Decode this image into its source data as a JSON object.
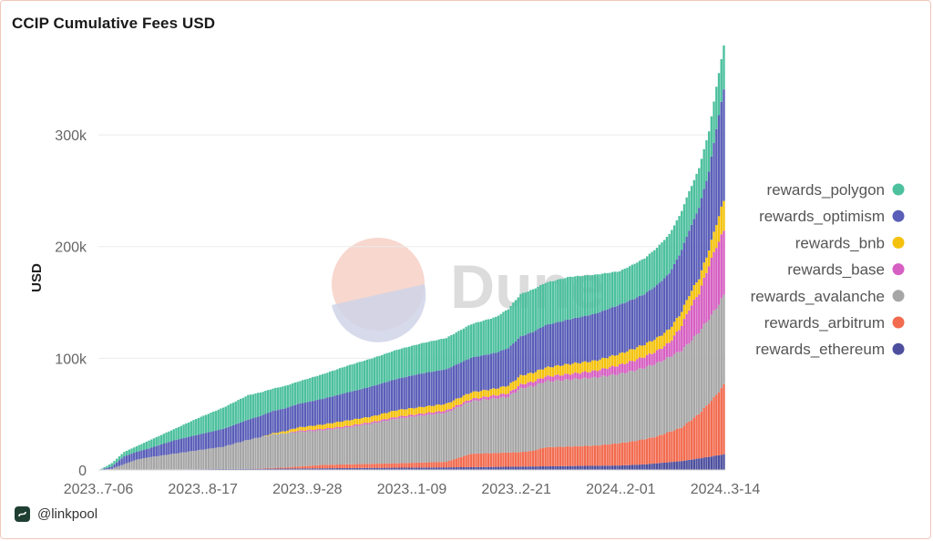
{
  "chart_data": {
    "type": "area",
    "title": "CCIP Cumulative Fees USD",
    "ylabel": "USD",
    "xlabel": "",
    "ylim": [
      0,
      380000
    ],
    "yticks": [
      0,
      100000,
      200000,
      300000
    ],
    "ytick_labels": [
      "0",
      "100k",
      "200k",
      "300k"
    ],
    "xtick_labels": [
      "2023..7-06",
      "2023..8-17",
      "2023..9-28",
      "2023..1-09",
      "2023..2-21",
      "2024..2-01",
      "2024..3-14"
    ],
    "x_positions": [
      0,
      42,
      84,
      126,
      168,
      210,
      252
    ],
    "x_range": [
      0,
      252
    ],
    "legend_position": "right",
    "grid": true,
    "watermark": "Dune",
    "series": [
      {
        "name": "rewards_ethereum",
        "color": "#4d4f9e",
        "points": [
          [
            0,
            0
          ],
          [
            30,
            500
          ],
          [
            60,
            1000
          ],
          [
            90,
            1500
          ],
          [
            120,
            2000
          ],
          [
            150,
            2500
          ],
          [
            170,
            3000
          ],
          [
            190,
            3500
          ],
          [
            210,
            4000
          ],
          [
            220,
            5000
          ],
          [
            235,
            8000
          ],
          [
            244,
            11000
          ],
          [
            252,
            14000
          ]
        ]
      },
      {
        "name": "rewards_arbitrum",
        "color": "#f26b4f",
        "points": [
          [
            0,
            0
          ],
          [
            60,
            0
          ],
          [
            75,
            1000
          ],
          [
            90,
            3000
          ],
          [
            120,
            4000
          ],
          [
            140,
            5000
          ],
          [
            150,
            12000
          ],
          [
            170,
            13000
          ],
          [
            175,
            14000
          ],
          [
            180,
            17000
          ],
          [
            200,
            18000
          ],
          [
            215,
            21000
          ],
          [
            225,
            24000
          ],
          [
            235,
            30000
          ],
          [
            242,
            40000
          ],
          [
            248,
            52000
          ],
          [
            252,
            62000
          ]
        ]
      },
      {
        "name": "rewards_avalanche",
        "color": "#a6a6a6",
        "points": [
          [
            0,
            0
          ],
          [
            5,
            1000
          ],
          [
            10,
            5000
          ],
          [
            15,
            9000
          ],
          [
            20,
            11000
          ],
          [
            30,
            14000
          ],
          [
            40,
            17000
          ],
          [
            50,
            20000
          ],
          [
            60,
            26000
          ],
          [
            70,
            30000
          ],
          [
            80,
            31000
          ],
          [
            90,
            31000
          ],
          [
            100,
            33000
          ],
          [
            110,
            36000
          ],
          [
            120,
            40000
          ],
          [
            130,
            42000
          ],
          [
            140,
            44000
          ],
          [
            150,
            47000
          ],
          [
            165,
            50000
          ],
          [
            170,
            57000
          ],
          [
            180,
            59000
          ],
          [
            190,
            60000
          ],
          [
            200,
            61000
          ],
          [
            210,
            62000
          ],
          [
            220,
            64000
          ],
          [
            230,
            67000
          ],
          [
            237,
            70000
          ],
          [
            240,
            72000
          ],
          [
            245,
            75000
          ],
          [
            252,
            80000
          ]
        ]
      },
      {
        "name": "rewards_base",
        "color": "#d65fc2",
        "points": [
          [
            0,
            0
          ],
          [
            75,
            0
          ],
          [
            80,
            1000
          ],
          [
            150,
            2000
          ],
          [
            165,
            3000
          ],
          [
            175,
            4000
          ],
          [
            190,
            5000
          ],
          [
            200,
            6000
          ],
          [
            210,
            8000
          ],
          [
            220,
            10000
          ],
          [
            225,
            11000
          ],
          [
            230,
            13000
          ],
          [
            234,
            20000
          ],
          [
            238,
            30000
          ],
          [
            242,
            35000
          ],
          [
            246,
            48000
          ],
          [
            249,
            55000
          ],
          [
            252,
            58000
          ]
        ]
      },
      {
        "name": "rewards_bnb",
        "color": "#f4c20d",
        "points": [
          [
            0,
            0
          ],
          [
            65,
            0
          ],
          [
            70,
            1000
          ],
          [
            80,
            3000
          ],
          [
            90,
            4000
          ],
          [
            100,
            5000
          ],
          [
            110,
            5000
          ],
          [
            120,
            6000
          ],
          [
            130,
            6000
          ],
          [
            150,
            6000
          ],
          [
            160,
            6000
          ],
          [
            170,
            8000
          ],
          [
            180,
            8000
          ],
          [
            190,
            9000
          ],
          [
            200,
            9000
          ],
          [
            210,
            10000
          ],
          [
            220,
            11000
          ],
          [
            230,
            12000
          ],
          [
            240,
            13000
          ],
          [
            246,
            14000
          ],
          [
            252,
            27000
          ]
        ]
      },
      {
        "name": "rewards_optimism",
        "color": "#5a5eb8",
        "points": [
          [
            0,
            0
          ],
          [
            5,
            2000
          ],
          [
            10,
            7000
          ],
          [
            15,
            7000
          ],
          [
            20,
            8000
          ],
          [
            30,
            12000
          ],
          [
            40,
            14000
          ],
          [
            50,
            16000
          ],
          [
            60,
            18000
          ],
          [
            70,
            20000
          ],
          [
            80,
            21000
          ],
          [
            90,
            23000
          ],
          [
            100,
            25000
          ],
          [
            110,
            27000
          ],
          [
            120,
            28000
          ],
          [
            130,
            30000
          ],
          [
            140,
            31000
          ],
          [
            150,
            31000
          ],
          [
            160,
            32000
          ],
          [
            170,
            35000
          ],
          [
            180,
            38000
          ],
          [
            190,
            40000
          ],
          [
            200,
            42000
          ],
          [
            210,
            44000
          ],
          [
            220,
            45000
          ],
          [
            230,
            50000
          ],
          [
            240,
            60000
          ],
          [
            246,
            70000
          ],
          [
            252,
            100000
          ]
        ]
      },
      {
        "name": "rewards_polygon",
        "color": "#4dc09e",
        "points": [
          [
            0,
            0
          ],
          [
            5,
            3000
          ],
          [
            10,
            4000
          ],
          [
            15,
            5000
          ],
          [
            20,
            7000
          ],
          [
            30,
            10000
          ],
          [
            40,
            15000
          ],
          [
            50,
            19000
          ],
          [
            60,
            22000
          ],
          [
            70,
            20000
          ],
          [
            80,
            20000
          ],
          [
            90,
            22000
          ],
          [
            100,
            24000
          ],
          [
            110,
            25000
          ],
          [
            120,
            26000
          ],
          [
            130,
            27000
          ],
          [
            140,
            28000
          ],
          [
            150,
            30000
          ],
          [
            160,
            32000
          ],
          [
            170,
            38000
          ],
          [
            180,
            38000
          ],
          [
            190,
            38000
          ],
          [
            200,
            35000
          ],
          [
            210,
            30000
          ],
          [
            220,
            32000
          ],
          [
            230,
            35000
          ],
          [
            240,
            35000
          ],
          [
            246,
            36000
          ],
          [
            252,
            39000
          ]
        ]
      }
    ]
  },
  "footer": {
    "handle": "@linkpool"
  }
}
